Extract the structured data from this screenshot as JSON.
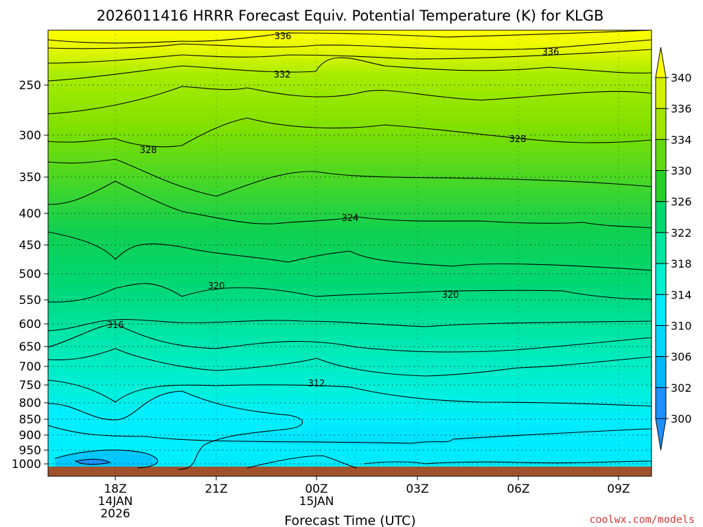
{
  "chart_data": {
    "type": "heatmap",
    "title": "2026011416 HRRR Forecast Equiv. Potential Temperature (K) for KLGB",
    "xlabel": "Forecast Time (UTC)",
    "ylabel": "",
    "credit": "coolwx.com/models",
    "y_axis": {
      "scale": "log-pressure",
      "ticks": [
        "250",
        "300",
        "350",
        "400",
        "450",
        "500",
        "550",
        "600",
        "650",
        "700",
        "750",
        "800",
        "850",
        "900",
        "950",
        "1000"
      ],
      "range": [
        1025,
        200
      ]
    },
    "x_axis": {
      "ticks": [
        {
          "label": "18Z",
          "sub1": "14JAN",
          "sub2": "2026"
        },
        {
          "label": "21Z",
          "sub1": "",
          "sub2": ""
        },
        {
          "label": "00Z",
          "sub1": "15JAN",
          "sub2": ""
        },
        {
          "label": "03Z",
          "sub1": "",
          "sub2": ""
        },
        {
          "label": "06Z",
          "sub1": "",
          "sub2": ""
        },
        {
          "label": "09Z",
          "sub1": "",
          "sub2": ""
        }
      ]
    },
    "colorbar": {
      "levels": [
        300,
        302,
        306,
        310,
        314,
        318,
        322,
        326,
        330,
        334,
        336,
        340
      ],
      "labels": [
        "300",
        "302",
        "306",
        "310",
        "314",
        "318",
        "322",
        "326",
        "330",
        "334",
        "336",
        "340"
      ],
      "colors": [
        "#1e90ff",
        "#00b8ff",
        "#00d6ff",
        "#00eaff",
        "#00f0d0",
        "#00e6a0",
        "#00d870",
        "#28d028",
        "#64d814",
        "#a0e600",
        "#d2f000",
        "#ffff00"
      ]
    },
    "contours": [
      {
        "theta": 336,
        "label": "336"
      },
      {
        "theta": 332,
        "label": "332"
      },
      {
        "theta": 328,
        "label": "328"
      },
      {
        "theta": 324,
        "label": "324"
      },
      {
        "theta": 320,
        "label": "320"
      },
      {
        "theta": 316,
        "label": "316"
      },
      {
        "theta": 312,
        "label": "312"
      }
    ],
    "grid": true,
    "terrain_color": "#a0522d"
  }
}
